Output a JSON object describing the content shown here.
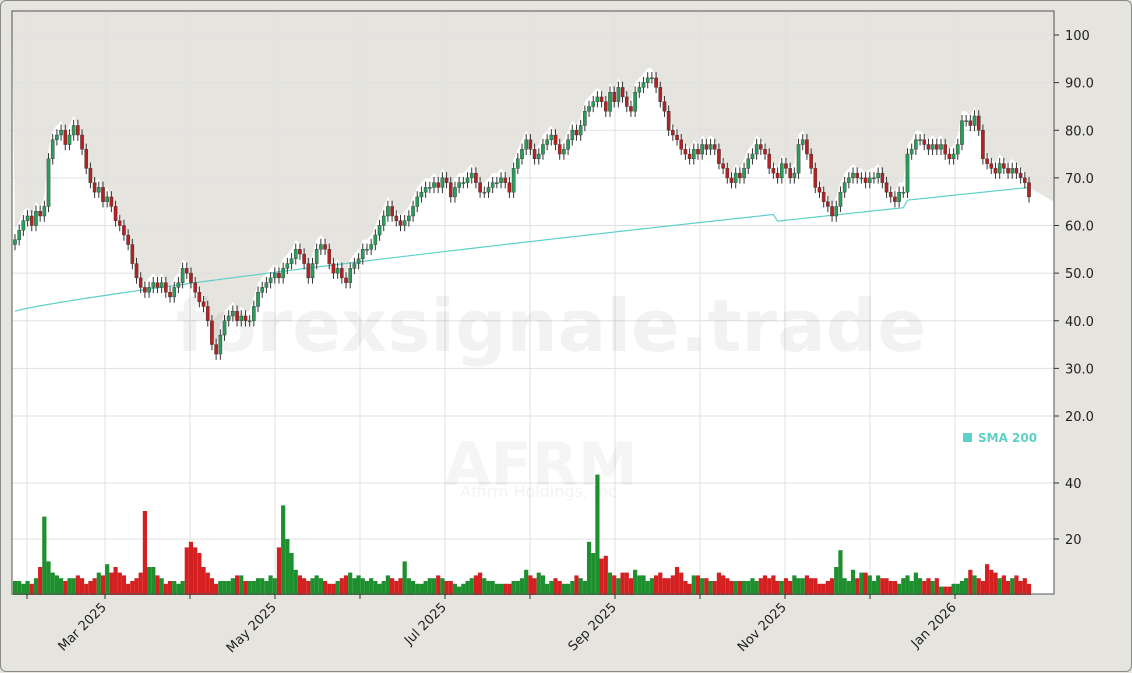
{
  "chart_data": {
    "type": "candlestick",
    "ticker": "AFRM",
    "company": "Affirm Holdings, Inc.",
    "watermark": "forexsignale.trade",
    "legend": [
      {
        "label": "SMA 200",
        "color": "#5ecfc9"
      }
    ],
    "price_axis": {
      "ticks": [
        "100",
        "90.0",
        "80.0",
        "70.0",
        "60.0",
        "50.0",
        "40.0",
        "30.0",
        "20.0"
      ],
      "values": [
        100,
        90,
        80,
        70,
        60,
        50,
        40,
        30,
        20
      ],
      "ylim": [
        15,
        105
      ]
    },
    "volume_axis": {
      "ticks": [
        "40",
        "20"
      ],
      "values": [
        40,
        20
      ],
      "ylim": [
        0,
        50
      ]
    },
    "x_ticks": [
      "Mar 2025",
      "May 2025",
      "Jul 2025",
      "Sep 2025",
      "Nov 2025",
      "Jan 2026"
    ],
    "x_tick_positions": [
      104,
      274,
      444,
      614,
      784,
      954
    ],
    "minor_tick_positions": [
      26,
      189,
      359,
      529,
      699,
      869
    ],
    "colors": {
      "up": "#1e8f2e",
      "down": "#d42020",
      "up_candle": "#2a9d5a",
      "down_candle": "#b22222",
      "sma": "#5ecfc9",
      "shade": "#e6e4df",
      "panel_bg": "#ffffff",
      "grid": "#e0e0e0"
    },
    "closes": [
      57,
      59,
      61,
      62,
      60,
      63,
      62,
      64,
      74,
      78,
      79,
      80,
      77,
      79,
      81,
      79,
      76,
      72,
      69,
      67,
      68,
      65,
      66,
      64,
      61,
      60,
      58,
      56,
      52,
      49,
      47,
      46,
      47,
      48,
      47,
      48,
      46,
      45,
      47,
      48,
      51,
      50,
      48,
      46,
      44,
      43,
      40,
      35,
      33,
      37,
      40,
      41,
      42,
      40,
      41,
      40,
      40,
      43,
      46,
      47,
      48,
      49,
      50,
      49,
      51,
      52,
      53,
      55,
      54,
      52,
      49,
      52,
      55,
      56,
      55,
      52,
      50,
      51,
      49,
      48,
      51,
      52,
      53,
      55,
      55,
      56,
      58,
      60,
      62,
      64,
      62,
      61,
      60,
      61,
      62,
      64,
      66,
      67,
      68,
      68,
      69,
      68,
      70,
      69,
      66,
      68,
      69,
      69,
      70,
      71,
      69,
      67,
      67,
      68,
      69,
      69,
      70,
      69,
      67,
      72,
      74,
      76,
      78,
      76,
      74,
      75,
      77,
      78,
      79,
      77,
      75,
      76,
      78,
      80,
      79,
      81,
      84,
      85,
      86,
      87,
      86,
      84,
      88,
      86,
      89,
      87,
      85,
      84,
      88,
      89,
      90,
      91,
      91,
      89,
      86,
      84,
      80,
      79,
      78,
      76,
      75,
      74,
      76,
      75,
      77,
      76,
      77,
      76,
      73,
      72,
      70,
      69,
      71,
      70,
      72,
      74,
      75,
      77,
      76,
      75,
      72,
      71,
      70,
      73,
      72,
      70,
      71,
      77,
      78,
      75,
      72,
      68,
      67,
      65,
      64,
      62,
      64,
      67,
      69,
      70,
      71,
      70,
      70,
      69,
      70,
      70,
      71,
      69,
      67,
      66,
      65,
      67,
      67,
      75,
      76,
      78,
      78,
      77,
      76,
      77,
      76,
      77,
      75,
      74,
      75,
      77,
      82,
      82,
      81,
      83,
      80,
      74,
      73,
      72,
      71,
      73,
      72,
      71,
      72,
      71,
      70,
      69,
      66
    ],
    "volumes": [
      5,
      5,
      4,
      5,
      4,
      6,
      10,
      28,
      12,
      8,
      7,
      6,
      5,
      6,
      6,
      7,
      6,
      4,
      5,
      6,
      8,
      7,
      11,
      8,
      10,
      8,
      7,
      4,
      5,
      6,
      8,
      30,
      10,
      10,
      7,
      6,
      4,
      5,
      5,
      4,
      5,
      17,
      19,
      17,
      15,
      10,
      8,
      6,
      4,
      5,
      5,
      5,
      6,
      7,
      7,
      5,
      5,
      5,
      6,
      6,
      5,
      7,
      6,
      17,
      32,
      20,
      15,
      9,
      7,
      6,
      5,
      6,
      7,
      6,
      5,
      4,
      4,
      5,
      6,
      7,
      8,
      6,
      7,
      6,
      5,
      6,
      5,
      4,
      5,
      7,
      6,
      5,
      6,
      12,
      6,
      5,
      4,
      4,
      5,
      6,
      6,
      7,
      6,
      5,
      5,
      4,
      3,
      4,
      5,
      6,
      7,
      8,
      6,
      5,
      5,
      4,
      4,
      4,
      4,
      5,
      5,
      6,
      9,
      7,
      6,
      8,
      7,
      4,
      5,
      6,
      5,
      4,
      4,
      5,
      7,
      6,
      5,
      19,
      15,
      43,
      13,
      14,
      8,
      7,
      6,
      8,
      8,
      6,
      9,
      7,
      7,
      5,
      6,
      7,
      8,
      6,
      6,
      7,
      10,
      8,
      5,
      4,
      7,
      7,
      6,
      6,
      5,
      5,
      8,
      7,
      6,
      5,
      5,
      5,
      5,
      5,
      6,
      5,
      6,
      7,
      6,
      7,
      5,
      5,
      6,
      5,
      7,
      6,
      6,
      7,
      6,
      6,
      4,
      4,
      5,
      6,
      10,
      16,
      6,
      5,
      9,
      6,
      8,
      8,
      7,
      5,
      7,
      6,
      6,
      5,
      5,
      4,
      6,
      7,
      5,
      8,
      6,
      5,
      6,
      5,
      6,
      3,
      3,
      3,
      4,
      4,
      5,
      6,
      9,
      7,
      6,
      5,
      11,
      9,
      8,
      6,
      7,
      5,
      6,
      7,
      5,
      6,
      4,
      4,
      5,
      5,
      6
    ]
  }
}
